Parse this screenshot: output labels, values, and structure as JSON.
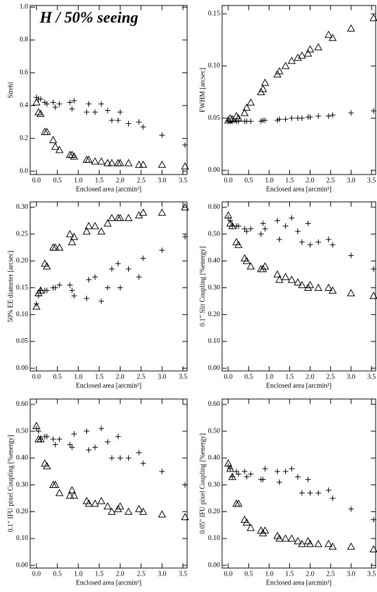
{
  "chart_data": [
    {
      "type": "scatter",
      "title": "H / 50% seeing",
      "xlabel": "Enclosed area [arcmin²]",
      "ylabel": "Strehl",
      "xlim": [
        -0.15,
        3.6
      ],
      "ylim": [
        -0.02,
        1.01
      ],
      "xticks": [
        {
          "value": 0,
          "label": "0.0"
        },
        0.5,
        {
          "value": 1,
          "label": "1.0"
        },
        1.5,
        {
          "value": 2,
          "label": "2.0"
        },
        2.5,
        {
          "value": 3,
          "label": "3.0"
        },
        3.5
      ],
      "yticks": [
        {
          "value": 0,
          "label": "0.0"
        },
        0.2,
        0.4,
        0.6,
        0.8,
        {
          "value": 1,
          "label": "1.0"
        }
      ],
      "x": [
        0.0,
        0.05,
        0.1,
        0.2,
        0.25,
        0.4,
        0.45,
        0.55,
        0.8,
        0.85,
        0.9,
        1.2,
        1.25,
        1.4,
        1.55,
        1.7,
        1.8,
        1.95,
        2.0,
        2.2,
        2.45,
        2.55,
        3.0,
        3.55
      ],
      "series": [
        {
          "marker": "triangle",
          "color": "#000000",
          "values": [
            0.42,
            0.36,
            0.35,
            0.24,
            0.24,
            0.19,
            0.15,
            0.13,
            0.1,
            0.1,
            0.09,
            0.07,
            0.07,
            0.06,
            0.06,
            0.05,
            0.05,
            0.05,
            0.05,
            0.05,
            0.04,
            0.04,
            0.04,
            0.03
          ]
        },
        {
          "marker": "plus",
          "color": "#000000",
          "values": [
            0.45,
            0.44,
            0.44,
            0.42,
            0.41,
            0.42,
            0.39,
            0.41,
            0.42,
            0.38,
            0.43,
            0.36,
            0.41,
            0.36,
            0.41,
            0.37,
            0.31,
            0.31,
            0.36,
            0.29,
            0.3,
            0.27,
            0.22,
            0.16
          ]
        }
      ]
    },
    {
      "type": "scatter",
      "xlabel": "Enclosed area [arcmin²]",
      "ylabel": "FWHM [arcsec]",
      "xlim": [
        -0.15,
        3.6
      ],
      "ylim": [
        -0.004,
        0.158
      ],
      "xticks": [
        {
          "value": 0,
          "label": "0.0"
        },
        0.5,
        {
          "value": 1,
          "label": "1.0"
        },
        1.5,
        {
          "value": 2,
          "label": "2.0"
        },
        2.5,
        {
          "value": 3,
          "label": "3.0"
        },
        3.5
      ],
      "yticks": [
        {
          "value": 0,
          "label": "0.00"
        },
        0.05,
        {
          "value": 0.1,
          "label": "0.10"
        },
        0.15
      ],
      "x": [
        0.0,
        0.05,
        0.1,
        0.2,
        0.25,
        0.4,
        0.45,
        0.55,
        0.8,
        0.85,
        0.9,
        1.2,
        1.25,
        1.4,
        1.55,
        1.7,
        1.8,
        1.95,
        2.0,
        2.2,
        2.45,
        2.55,
        3.0,
        3.55
      ],
      "series": [
        {
          "marker": "triangle",
          "color": "#000000",
          "values": [
            0.048,
            0.05,
            0.049,
            0.052,
            0.05,
            0.055,
            0.06,
            0.065,
            0.075,
            0.078,
            0.084,
            0.092,
            0.095,
            0.1,
            0.105,
            0.108,
            0.11,
            0.112,
            0.116,
            0.118,
            0.13,
            0.127,
            0.136,
            0.146
          ]
        },
        {
          "marker": "plus",
          "color": "#000000",
          "values": [
            0.047,
            0.047,
            0.047,
            0.047,
            0.047,
            0.047,
            0.047,
            0.047,
            0.047,
            0.048,
            0.048,
            0.048,
            0.049,
            0.049,
            0.05,
            0.05,
            0.05,
            0.051,
            0.051,
            0.052,
            0.052,
            0.053,
            0.055,
            0.057
          ]
        }
      ]
    },
    {
      "type": "scatter",
      "xlabel": "Enclosed area [arcmin²]",
      "ylabel": "50% EE diameter [arcsec]",
      "xlim": [
        -0.15,
        3.6
      ],
      "ylim": [
        -0.005,
        0.31
      ],
      "xticks": [
        {
          "value": 0,
          "label": "0.0"
        },
        0.5,
        {
          "value": 1,
          "label": "1.0"
        },
        1.5,
        {
          "value": 2,
          "label": "2.0"
        },
        2.5,
        {
          "value": 3,
          "label": "3.0"
        },
        3.5
      ],
      "yticks": [
        {
          "value": 0,
          "label": "0.00"
        },
        0.05,
        {
          "value": 0.1,
          "label": "0.10"
        },
        0.15,
        {
          "value": 0.2,
          "label": "0.20"
        },
        0.25,
        {
          "value": 0.3,
          "label": "0.30"
        }
      ],
      "x": [
        0.0,
        0.05,
        0.1,
        0.2,
        0.25,
        0.4,
        0.45,
        0.55,
        0.8,
        0.85,
        0.9,
        1.2,
        1.25,
        1.4,
        1.55,
        1.7,
        1.8,
        1.95,
        2.0,
        2.2,
        2.45,
        2.55,
        3.0,
        3.55
      ],
      "series": [
        {
          "marker": "triangle",
          "color": "#000000",
          "values": [
            0.115,
            0.14,
            0.145,
            0.195,
            0.19,
            0.225,
            0.225,
            0.225,
            0.25,
            0.235,
            0.245,
            0.255,
            0.265,
            0.265,
            0.255,
            0.27,
            0.28,
            0.28,
            0.28,
            0.28,
            0.285,
            0.29,
            0.29,
            0.3
          ]
        },
        {
          "marker": "plus",
          "color": "#000000",
          "values": [
            0.12,
            0.135,
            0.145,
            0.145,
            0.145,
            0.15,
            0.15,
            0.155,
            0.155,
            0.145,
            0.135,
            0.13,
            0.165,
            0.17,
            0.125,
            0.15,
            0.185,
            0.195,
            0.15,
            0.185,
            0.17,
            0.205,
            0.22,
            0.245
          ]
        }
      ]
    },
    {
      "type": "scatter",
      "xlabel": "Enclosed area [arcmin²]",
      "ylabel": "0.1\" Slit Coupling [%energy]",
      "xlim": [
        -0.15,
        3.6
      ],
      "ylim": [
        -0.01,
        0.62
      ],
      "xticks": [
        {
          "value": 0,
          "label": "0.0"
        },
        0.5,
        {
          "value": 1,
          "label": "1.0"
        },
        1.5,
        {
          "value": 2,
          "label": "2.0"
        },
        2.5,
        {
          "value": 3,
          "label": "3.0"
        },
        3.5
      ],
      "yticks": [
        {
          "value": 0,
          "label": "0.00"
        },
        {
          "value": 0.1,
          "label": "0.10"
        },
        {
          "value": 0.2,
          "label": "0.20"
        },
        {
          "value": 0.3,
          "label": "0.30"
        },
        {
          "value": 0.4,
          "label": "0.40"
        },
        {
          "value": 0.5,
          "label": "0.50"
        },
        {
          "value": 0.6,
          "label": "0.60"
        }
      ],
      "x": [
        0.0,
        0.05,
        0.1,
        0.2,
        0.25,
        0.4,
        0.45,
        0.55,
        0.8,
        0.85,
        0.9,
        1.2,
        1.25,
        1.4,
        1.55,
        1.7,
        1.8,
        1.95,
        2.0,
        2.2,
        2.45,
        2.55,
        3.0,
        3.55
      ],
      "series": [
        {
          "marker": "triangle",
          "color": "#000000",
          "values": [
            0.57,
            0.54,
            0.53,
            0.47,
            0.46,
            0.41,
            0.4,
            0.38,
            0.37,
            0.37,
            0.38,
            0.35,
            0.33,
            0.34,
            0.33,
            0.32,
            0.31,
            0.3,
            0.31,
            0.3,
            0.3,
            0.29,
            0.28,
            0.27
          ]
        },
        {
          "marker": "plus",
          "color": "#000000",
          "values": [
            0.56,
            0.55,
            0.53,
            0.53,
            0.53,
            0.52,
            0.51,
            0.52,
            0.5,
            0.54,
            0.52,
            0.55,
            0.48,
            0.53,
            0.56,
            0.51,
            0.47,
            0.54,
            0.46,
            0.47,
            0.48,
            0.46,
            0.42,
            0.37
          ]
        }
      ]
    },
    {
      "type": "scatter",
      "xlabel": "Enclosed area [arcmin²]",
      "ylabel": "0.1\" IFU pixel Coupling [%energy]",
      "xlim": [
        -0.15,
        3.6
      ],
      "ylim": [
        -0.01,
        0.62
      ],
      "xticks": [
        {
          "value": 0,
          "label": "0.0"
        },
        0.5,
        {
          "value": 1,
          "label": "1.0"
        },
        1.5,
        {
          "value": 2,
          "label": "2.0"
        },
        2.5,
        {
          "value": 3,
          "label": "3.0"
        },
        3.5
      ],
      "yticks": [
        {
          "value": 0,
          "label": "0.00"
        },
        {
          "value": 0.1,
          "label": "0.10"
        },
        {
          "value": 0.2,
          "label": "0.20"
        },
        {
          "value": 0.3,
          "label": "0.30"
        },
        {
          "value": 0.4,
          "label": "0.40"
        },
        {
          "value": 0.5,
          "label": "0.50"
        },
        {
          "value": 0.6,
          "label": "0.60"
        }
      ],
      "x": [
        0.0,
        0.05,
        0.1,
        0.2,
        0.25,
        0.4,
        0.45,
        0.55,
        0.8,
        0.85,
        0.9,
        1.2,
        1.25,
        1.4,
        1.55,
        1.7,
        1.8,
        1.95,
        2.0,
        2.2,
        2.45,
        2.55,
        3.0,
        3.55
      ],
      "series": [
        {
          "marker": "triangle",
          "color": "#000000",
          "values": [
            0.52,
            0.47,
            0.47,
            0.38,
            0.37,
            0.3,
            0.3,
            0.27,
            0.26,
            0.28,
            0.26,
            0.24,
            0.23,
            0.23,
            0.24,
            0.22,
            0.2,
            0.21,
            0.22,
            0.2,
            0.21,
            0.2,
            0.19,
            0.18
          ]
        },
        {
          "marker": "plus",
          "color": "#000000",
          "values": [
            0.51,
            0.5,
            0.47,
            0.48,
            0.48,
            0.47,
            0.45,
            0.47,
            0.45,
            0.44,
            0.49,
            0.5,
            0.43,
            0.44,
            0.51,
            0.46,
            0.4,
            0.48,
            0.4,
            0.4,
            0.42,
            0.38,
            0.35,
            0.3
          ]
        }
      ]
    },
    {
      "type": "scatter",
      "xlabel": "Enclosed area [arcmin²]",
      "ylabel": "0.05\" IFU pixel Coupling [%energy]",
      "xlim": [
        -0.15,
        3.6
      ],
      "ylim": [
        -0.01,
        0.62
      ],
      "xticks": [
        {
          "value": 0,
          "label": "0.0"
        },
        0.5,
        {
          "value": 1,
          "label": "1.0"
        },
        1.5,
        {
          "value": 2,
          "label": "2.0"
        },
        2.5,
        {
          "value": 3,
          "label": "3.0"
        },
        3.5
      ],
      "yticks": [
        {
          "value": 0,
          "label": "0.00"
        },
        {
          "value": 0.1,
          "label": "0.10"
        },
        {
          "value": 0.2,
          "label": "0.20"
        },
        {
          "value": 0.3,
          "label": "0.30"
        },
        {
          "value": 0.4,
          "label": "0.40"
        },
        {
          "value": 0.5,
          "label": "0.50"
        },
        {
          "value": 0.6,
          "label": "0.60"
        }
      ],
      "x": [
        0.0,
        0.05,
        0.1,
        0.2,
        0.25,
        0.4,
        0.45,
        0.55,
        0.8,
        0.85,
        0.9,
        1.2,
        1.25,
        1.4,
        1.55,
        1.7,
        1.8,
        1.95,
        2.0,
        2.2,
        2.45,
        2.55,
        3.0,
        3.55
      ],
      "series": [
        {
          "marker": "triangle",
          "color": "#000000",
          "values": [
            0.38,
            0.36,
            0.33,
            0.23,
            0.23,
            0.17,
            0.16,
            0.14,
            0.13,
            0.12,
            0.13,
            0.11,
            0.1,
            0.1,
            0.1,
            0.09,
            0.08,
            0.09,
            0.08,
            0.08,
            0.08,
            0.07,
            0.07,
            0.06
          ]
        },
        {
          "marker": "plus",
          "color": "#000000",
          "values": [
            0.37,
            0.36,
            0.33,
            0.35,
            0.34,
            0.35,
            0.33,
            0.34,
            0.32,
            0.32,
            0.36,
            0.35,
            0.31,
            0.35,
            0.36,
            0.33,
            0.27,
            0.32,
            0.27,
            0.27,
            0.28,
            0.25,
            0.21,
            0.17
          ]
        }
      ]
    }
  ]
}
